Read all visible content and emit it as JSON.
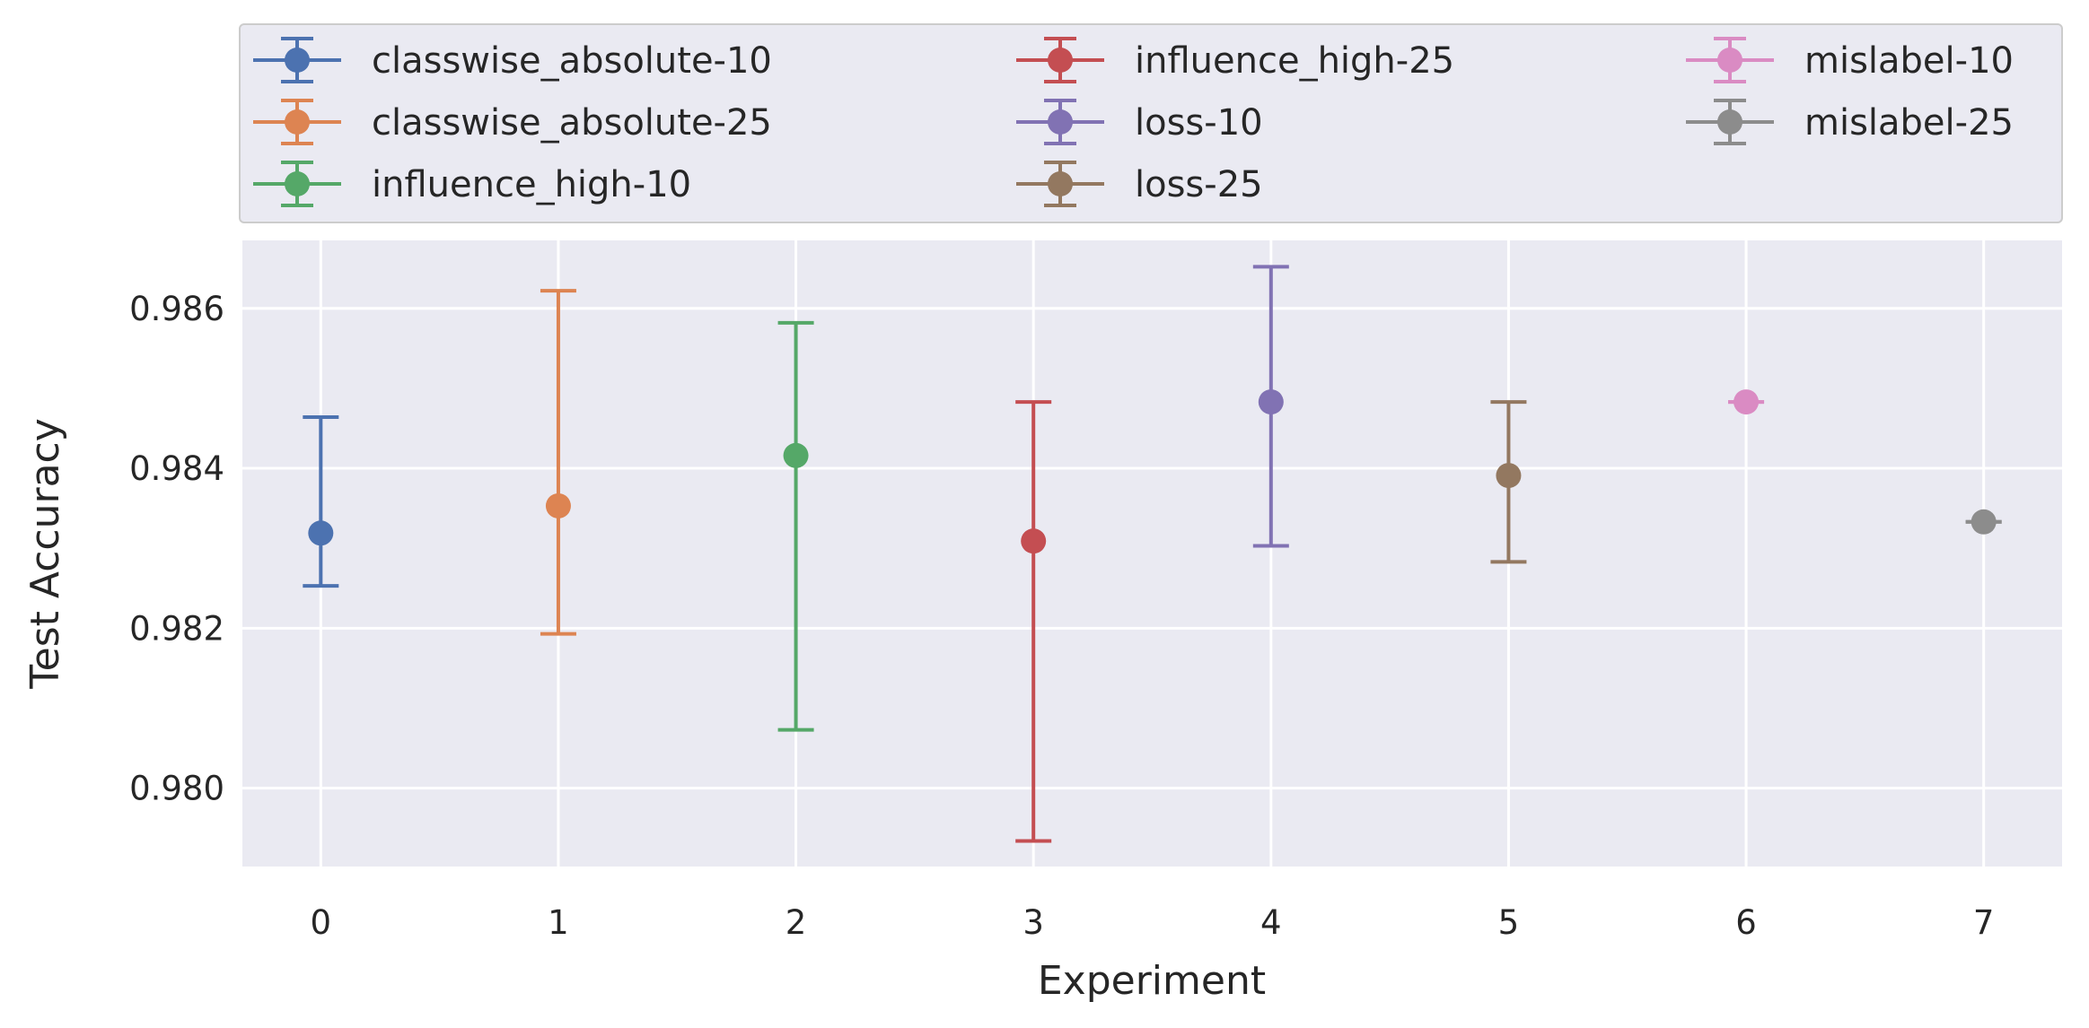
{
  "chart_data": {
    "type": "scatter",
    "title": "",
    "xlabel": "Experiment",
    "ylabel": "Test Accuracy",
    "xlim": [
      -0.33,
      7.33
    ],
    "ylim": [
      0.97902,
      0.98685
    ],
    "x_ticks": [
      "0",
      "1",
      "2",
      "3",
      "4",
      "5",
      "6",
      "7"
    ],
    "y_ticks": [
      "0.980",
      "0.982",
      "0.984",
      "0.986"
    ],
    "grid": true,
    "legend_placement": "top",
    "series": [
      {
        "name": "classwise_absolute-10",
        "x": 0,
        "y": 0.98319,
        "err_low": 0.98253,
        "err_high": 0.98464,
        "color": "#4c72b0"
      },
      {
        "name": "classwise_absolute-25",
        "x": 1,
        "y": 0.98353,
        "err_low": 0.98193,
        "err_high": 0.98622,
        "color": "#dd8452"
      },
      {
        "name": "influence_high-10",
        "x": 2,
        "y": 0.98416,
        "err_low": 0.98073,
        "err_high": 0.98582,
        "color": "#55a868"
      },
      {
        "name": "influence_high-25",
        "x": 3,
        "y": 0.98309,
        "err_low": 0.97934,
        "err_high": 0.98483,
        "color": "#c44e52"
      },
      {
        "name": "loss-10",
        "x": 4,
        "y": 0.98483,
        "err_low": 0.98303,
        "err_high": 0.98652,
        "color": "#8172b3"
      },
      {
        "name": "loss-25",
        "x": 5,
        "y": 0.98391,
        "err_low": 0.98283,
        "err_high": 0.98483,
        "color": "#937860"
      },
      {
        "name": "mislabel-10",
        "x": 6,
        "y": 0.98483,
        "err_low": 0.98483,
        "err_high": 0.98483,
        "color": "#da8bc3"
      },
      {
        "name": "mislabel-25",
        "x": 7,
        "y": 0.98333,
        "err_low": 0.98333,
        "err_high": 0.98333,
        "color": "#8c8c8c"
      }
    ]
  }
}
